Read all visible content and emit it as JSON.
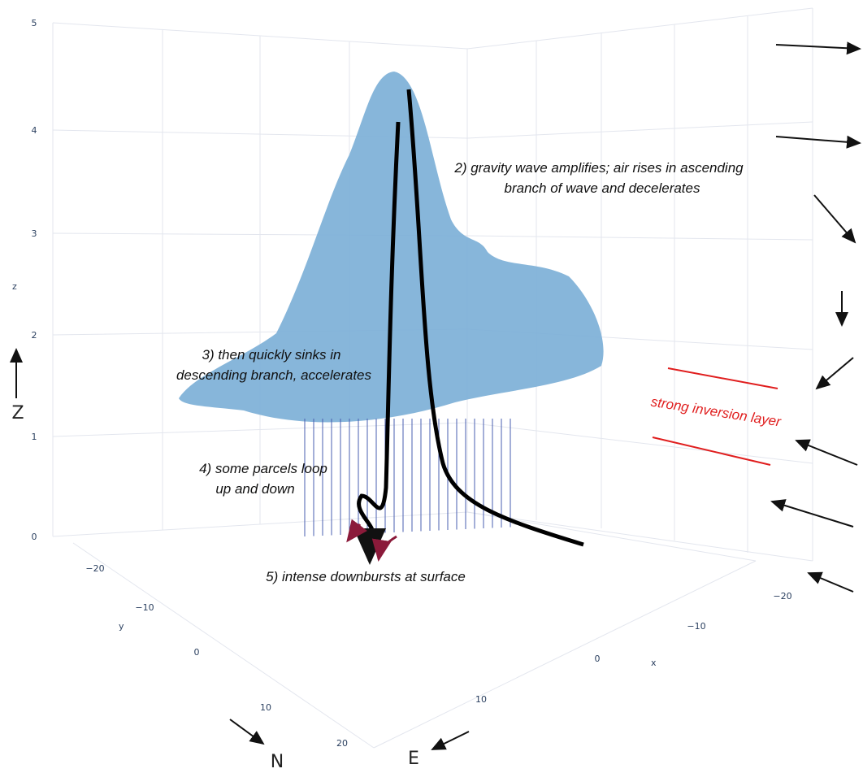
{
  "axes": {
    "z": {
      "title": "z",
      "ticks": [
        "0",
        "1",
        "2",
        "3",
        "4",
        "5"
      ]
    },
    "y": {
      "title": "y",
      "ticks": [
        "−20",
        "−10",
        "0",
        "10",
        "20"
      ]
    },
    "x": {
      "title": "x",
      "ticks": [
        "−20",
        "−10",
        "0",
        "10"
      ]
    }
  },
  "compass": {
    "z": "Z",
    "n": "N",
    "e": "E"
  },
  "annotations": {
    "step2": [
      "2) gravity wave amplifies; air rises in ascending",
      "branch of wave and decelerates"
    ],
    "step3": [
      "3) then quickly sinks in",
      "descending branch, accelerates"
    ],
    "step4": [
      "4) some parcels loop",
      "up and down"
    ],
    "step5": "5) intense downbursts at surface",
    "inversion": "strong inversion layer"
  }
}
